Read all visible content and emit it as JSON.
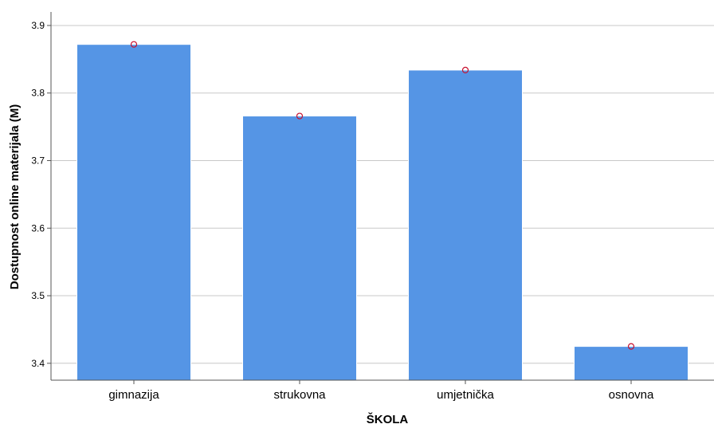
{
  "chart_data": {
    "type": "bar",
    "title": "",
    "xlabel": "ŠKOLA",
    "ylabel": "Dostupnost online materijala (M)",
    "categories": [
      "gimnazija",
      "strukovna",
      "umjetnička",
      "osnovna"
    ],
    "values": [
      3.872,
      3.766,
      3.834,
      3.425
    ],
    "ylim": [
      3.375,
      3.92
    ],
    "yticks": [
      3.4,
      3.5,
      3.6,
      3.7,
      3.8,
      3.9
    ],
    "ytick_labels": [
      "3.4",
      "3.5",
      "3.6",
      "3.7",
      "3.8",
      "3.9"
    ],
    "grid": true,
    "legend": "none",
    "mean_markers": true,
    "colors": {
      "bar": "#5595e5",
      "bar_edge": "#ffffff",
      "marker": "#c8102e",
      "grid": "#c8c8c8",
      "axis": "#555555"
    }
  }
}
